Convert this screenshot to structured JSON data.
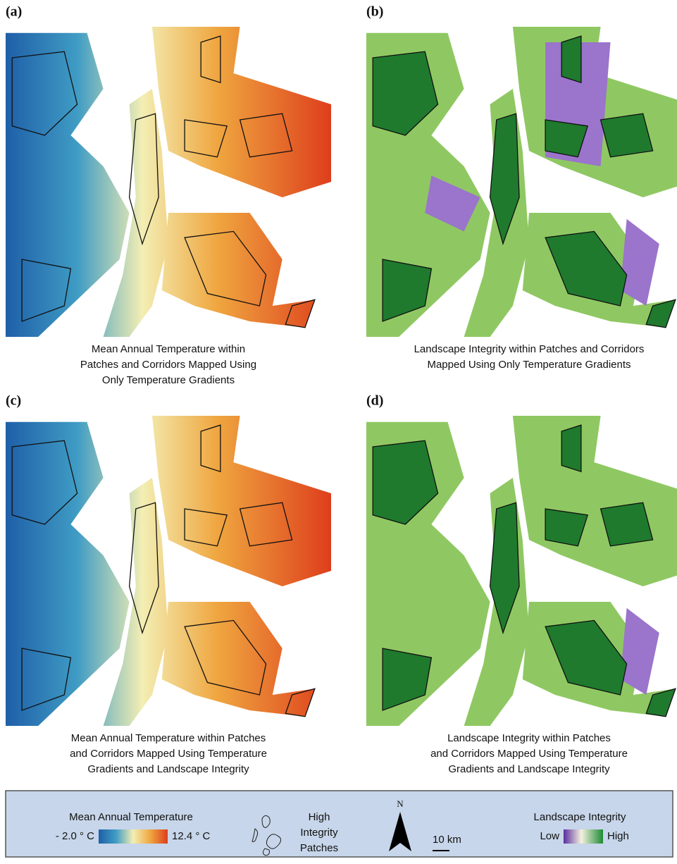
{
  "panels": [
    {
      "label": "(a)",
      "caption": [
        "Mean Annual Temperature within",
        "Patches and Corridors Mapped Using",
        "Only Temperature Gradients"
      ]
    },
    {
      "label": "(b)",
      "caption": [
        "Landscape Integrity within Patches and Corridors",
        "Mapped Using Only Temperature Gradients"
      ]
    },
    {
      "label": "(c)",
      "caption": [
        "Mean Annual Temperature within Patches",
        "and Corridors Mapped Using Temperature",
        "Gradients and Landscape Integrity"
      ]
    },
    {
      "label": "(d)",
      "caption": [
        "Landscape Integrity within Patches",
        "and Corridors Mapped Using Temperature",
        "Gradients and Landscape Integrity"
      ]
    }
  ],
  "legend": {
    "temperature": {
      "title": "Mean Annual Temperature",
      "min": "- 2.0 ° C",
      "max": "12.4 ° C"
    },
    "patches": [
      "High",
      "Integrity",
      "Patches"
    ],
    "north": "N",
    "scale": "10 km",
    "integrity": {
      "title": "Landscape Integrity",
      "low": "Low",
      "high": "High"
    }
  }
}
